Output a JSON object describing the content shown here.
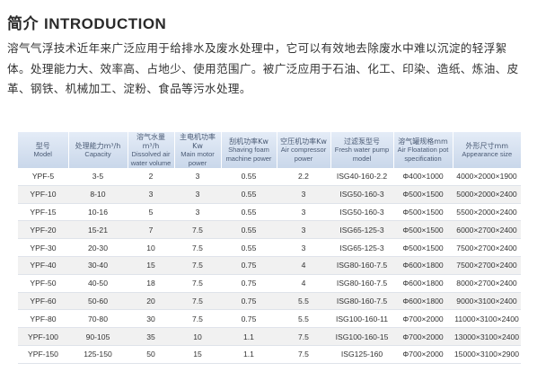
{
  "heading": {
    "cn": "简介",
    "en": "INTRODUCTION"
  },
  "intro_lines": [
    "溶气气浮技术近年来广泛应用于给排水及废水处理中，它可以有效地去除废水中难以沉淀的轻浮絮",
    "体。处理能力大、效率高、占地少、使用范围广。被广泛应用于石油、化工、印染、造纸、炼油、皮",
    "革、钢铁、机械加工、淀粉、食品等污水处理。"
  ],
  "table": {
    "headers": [
      {
        "cn": "型号",
        "en": "Model"
      },
      {
        "cn": "处理能力m³/h",
        "en": "Capacity"
      },
      {
        "cn": "溶气水量m³/h",
        "en": "Dissolved air water volume"
      },
      {
        "cn": "主电机功率Kw",
        "en": "Main motor power"
      },
      {
        "cn": "刮机功率Kw",
        "en": "Shaving foam machine power"
      },
      {
        "cn": "空压机功率Kw",
        "en": "Air compressor power"
      },
      {
        "cn": "过滤泵型号",
        "en": "Fresh water pump model"
      },
      {
        "cn": "溶气罐规格mm",
        "en": "Air Floatation pot specification"
      },
      {
        "cn": "外形尺寸mm",
        "en": "Appearance size"
      }
    ],
    "rows": [
      [
        "YPF-5",
        "3-5",
        "2",
        "3",
        "0.55",
        "2.2",
        "ISG40-160-2.2",
        "Φ400×1000",
        "4000×2000×1900"
      ],
      [
        "YPF-10",
        "8-10",
        "3",
        "3",
        "0.55",
        "3",
        "ISG50-160-3",
        "Φ500×1500",
        "5000×2000×2400"
      ],
      [
        "YPF-15",
        "10-16",
        "5",
        "3",
        "0.55",
        "3",
        "ISG50-160-3",
        "Φ500×1500",
        "5500×2000×2400"
      ],
      [
        "YPF-20",
        "15-21",
        "7",
        "7.5",
        "0.55",
        "3",
        "ISG65-125-3",
        "Φ500×1500",
        "6000×2700×2400"
      ],
      [
        "YPF-30",
        "20-30",
        "10",
        "7.5",
        "0.55",
        "3",
        "ISG65-125-3",
        "Φ500×1500",
        "7500×2700×2400"
      ],
      [
        "YPF-40",
        "30-40",
        "15",
        "7.5",
        "0.75",
        "4",
        "ISG80-160-7.5",
        "Φ600×1800",
        "7500×2700×2400"
      ],
      [
        "YPF-50",
        "40-50",
        "18",
        "7.5",
        "0.75",
        "4",
        "ISG80-160-7.5",
        "Φ600×1800",
        "8000×2700×2400"
      ],
      [
        "YPF-60",
        "50-60",
        "20",
        "7.5",
        "0.75",
        "5.5",
        "ISG80-160-7.5",
        "Φ600×1800",
        "9000×3100×2400"
      ],
      [
        "YPF-80",
        "70-80",
        "30",
        "7.5",
        "0.75",
        "5.5",
        "ISG100-160-11",
        "Φ700×2000",
        "11000×3100×2400"
      ],
      [
        "YPF-100",
        "90-105",
        "35",
        "10",
        "1.1",
        "7.5",
        "ISG100-160-15",
        "Φ700×2000",
        "13000×3100×2400"
      ],
      [
        "YPF-150",
        "125-150",
        "50",
        "15",
        "1.1",
        "7.5",
        "ISG125-160",
        "Φ700×2000",
        "15000×3100×2900"
      ]
    ]
  }
}
